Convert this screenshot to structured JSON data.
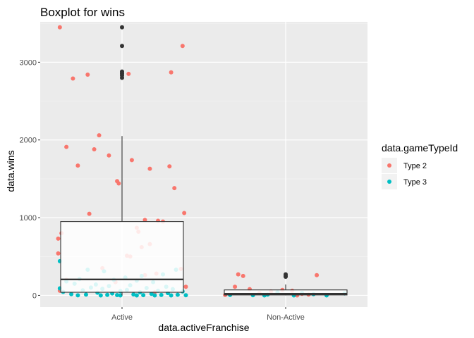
{
  "chart_data": {
    "type": "boxplot",
    "title": "Boxplot for wins",
    "xlabel": "data.activeFranchise",
    "ylabel": "data.wins",
    "categories": [
      "Active",
      "Non-Active"
    ],
    "ylim": [
      -150,
      3520
    ],
    "yticks": [
      0,
      1000,
      2000,
      3000
    ],
    "ytick_labels": [
      "0",
      "1000",
      "2000",
      "3000"
    ],
    "grid": true,
    "legend_position": "right",
    "legend_title": "data.gameTypeId",
    "colors": {
      "panel": "#EBEBEB",
      "grid_major": "#FFFFFF",
      "type2": "#F8766D",
      "type3": "#00BFC4",
      "outlier": "#333333",
      "box_fill": "#FFFFFF",
      "box_line": "#333333"
    },
    "boxes": [
      {
        "category": "Active",
        "q1": 40,
        "median": 205,
        "q3": 950,
        "whisker_low": 0,
        "whisker_high": 2050,
        "outliers": [
          3450,
          3210,
          2880,
          2860,
          2850,
          2830,
          2800
        ]
      },
      {
        "category": "Non-Active",
        "q1": 5,
        "median": 20,
        "q3": 70,
        "whisker_low": 0,
        "whisker_high": 140,
        "outliers": [
          270,
          250,
          240
        ]
      }
    ],
    "series": [
      {
        "name": "Type 2",
        "color": "#F8766D",
        "points": [
          [
            "Active",
            3450,
            -0.38
          ],
          [
            "Active",
            3210,
            0.37
          ],
          [
            "Active",
            2870,
            0.3
          ],
          [
            "Active",
            2850,
            0.04
          ],
          [
            "Active",
            2840,
            -0.21
          ],
          [
            "Active",
            2790,
            -0.3
          ],
          [
            "Active",
            2060,
            -0.14
          ],
          [
            "Active",
            1910,
            -0.34
          ],
          [
            "Active",
            1880,
            -0.17
          ],
          [
            "Active",
            1800,
            -0.08
          ],
          [
            "Active",
            1740,
            0.06
          ],
          [
            "Active",
            1670,
            -0.27
          ],
          [
            "Active",
            1660,
            0.29
          ],
          [
            "Active",
            1630,
            0.17
          ],
          [
            "Active",
            1470,
            -0.03
          ],
          [
            "Active",
            1440,
            -0.02
          ],
          [
            "Active",
            1380,
            0.32
          ],
          [
            "Active",
            1060,
            0.38
          ],
          [
            "Active",
            1050,
            -0.2
          ],
          [
            "Active",
            970,
            0.14
          ],
          [
            "Active",
            960,
            0.22
          ],
          [
            "Active",
            950,
            0.25
          ],
          [
            "Active",
            870,
            0.09
          ],
          [
            "Active",
            820,
            0.1
          ],
          [
            "Active",
            800,
            -0.37
          ],
          [
            "Active",
            730,
            -0.39
          ],
          [
            "Active",
            660,
            0.17
          ],
          [
            "Active",
            620,
            0.12
          ],
          [
            "Active",
            540,
            -0.39
          ],
          [
            "Active",
            510,
            0.03
          ],
          [
            "Active",
            500,
            0.05
          ],
          [
            "Active",
            350,
            -0.12
          ],
          [
            "Active",
            340,
            0.36
          ],
          [
            "Active",
            280,
            0.21
          ],
          [
            "Active",
            260,
            0.14
          ],
          [
            "Active",
            200,
            -0.34
          ],
          [
            "Active",
            170,
            -0.04
          ],
          [
            "Active",
            110,
            0.39
          ],
          [
            "Active",
            60,
            -0.38
          ],
          [
            "Active",
            40,
            0.2
          ],
          [
            "Non-Active",
            270,
            -0.29
          ],
          [
            "Non-Active",
            260,
            0.19
          ],
          [
            "Non-Active",
            250,
            -0.26
          ],
          [
            "Non-Active",
            110,
            -0.31
          ],
          [
            "Non-Active",
            80,
            -0.22
          ],
          [
            "Non-Active",
            70,
            -0.02
          ],
          [
            "Non-Active",
            60,
            0.04
          ],
          [
            "Non-Active",
            50,
            -0.09
          ],
          [
            "Non-Active",
            30,
            -0.16
          ],
          [
            "Non-Active",
            20,
            0.1
          ],
          [
            "Non-Active",
            10,
            0.14
          ],
          [
            "Non-Active",
            5,
            -0.37
          ],
          [
            "Non-Active",
            0,
            0.07
          ]
        ]
      },
      {
        "name": "Type 3",
        "color": "#00BFC4",
        "points": [
          [
            "Active",
            440,
            -0.38
          ],
          [
            "Active",
            330,
            -0.21
          ],
          [
            "Active",
            330,
            0.33
          ],
          [
            "Active",
            310,
            -0.11
          ],
          [
            "Active",
            270,
            0.25
          ],
          [
            "Active",
            250,
            0.12
          ],
          [
            "Active",
            230,
            0.02
          ],
          [
            "Active",
            210,
            -0.26
          ],
          [
            "Active",
            200,
            -0.05
          ],
          [
            "Active",
            190,
            0.09
          ],
          [
            "Active",
            180,
            -0.34
          ],
          [
            "Active",
            170,
            0.19
          ],
          [
            "Active",
            150,
            -0.29
          ],
          [
            "Active",
            140,
            -0.16
          ],
          [
            "Active",
            130,
            0.05
          ],
          [
            "Active",
            120,
            -0.08
          ],
          [
            "Active",
            110,
            0.27
          ],
          [
            "Active",
            100,
            -0.19
          ],
          [
            "Active",
            95,
            0.15
          ],
          [
            "Active",
            90,
            -0.38
          ],
          [
            "Active",
            85,
            -0.12
          ],
          [
            "Active",
            80,
            0.31
          ],
          [
            "Active",
            70,
            0.03
          ],
          [
            "Active",
            65,
            -0.24
          ],
          [
            "Active",
            60,
            0.22
          ],
          [
            "Active",
            55,
            -0.01
          ],
          [
            "Active",
            50,
            0.37
          ],
          [
            "Active",
            45,
            -0.36
          ],
          [
            "Active",
            40,
            0.11
          ],
          [
            "Active",
            35,
            -0.15
          ],
          [
            "Active",
            30,
            0.28
          ],
          [
            "Active",
            25,
            -0.06
          ],
          [
            "Active",
            20,
            0.18
          ],
          [
            "Active",
            15,
            -0.31
          ],
          [
            "Active",
            12,
            0.07
          ],
          [
            "Active",
            10,
            -0.22
          ],
          [
            "Active",
            8,
            0.34
          ],
          [
            "Active",
            6,
            -0.09
          ],
          [
            "Active",
            5,
            0.24
          ],
          [
            "Active",
            4,
            -0.03
          ],
          [
            "Active",
            3,
            0.13
          ],
          [
            "Active",
            2,
            0.39
          ],
          [
            "Active",
            1,
            -0.27
          ],
          [
            "Active",
            0,
            0.2
          ],
          [
            "Active",
            0,
            -0.13
          ],
          [
            "Active",
            0,
            0.3
          ],
          [
            "Active",
            0,
            -0.01
          ],
          [
            "Active",
            0,
            0.09
          ],
          [
            "Non-Active",
            40,
            -0.05
          ],
          [
            "Non-Active",
            30,
            0.1
          ],
          [
            "Non-Active",
            25,
            0.36
          ],
          [
            "Non-Active",
            15,
            0.17
          ],
          [
            "Non-Active",
            10,
            -0.11
          ],
          [
            "Non-Active",
            5,
            -0.34
          ],
          [
            "Non-Active",
            2,
            -0.2
          ],
          [
            "Non-Active",
            0,
            0.25
          ],
          [
            "Non-Active",
            0,
            0.05
          ],
          [
            "Non-Active",
            0,
            -0.13
          ]
        ]
      }
    ],
    "legend_entries": [
      {
        "label": "Type 2",
        "color": "#F8766D"
      },
      {
        "label": "Type 3",
        "color": "#00BFC4"
      }
    ]
  }
}
